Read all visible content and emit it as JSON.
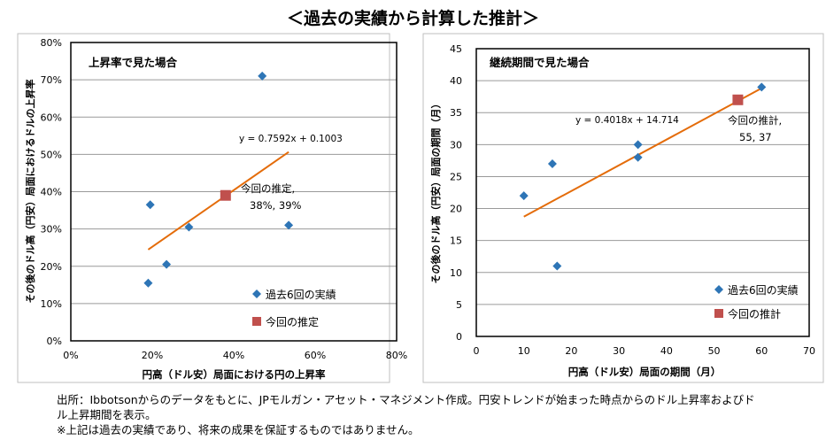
{
  "heading": "＜過去の実績から計算した推計＞",
  "footnotes": [
    "出所：Ibbotsonからのデータをもとに、JPモルガン・アセット・マネジメント作成。円安トレンドが始まった時点からのドル上昇率およびド",
    "ル上昇期間を表示。",
    "※上記は過去の実績であり、将来の成果を保証するものではありません。"
  ],
  "colors": {
    "point": "#2e75b6",
    "estimate": "#c0504d",
    "trend": "#e46c0a",
    "grid": "#9a9a9a",
    "frame": "#000000"
  },
  "chart_data": [
    {
      "type": "scatter",
      "panel_title": "上昇率で見た場合",
      "xlabel": "円高（ドル安）局面における円の上昇率",
      "ylabel": "その後のドル高（円安）局面におけるドルの上昇率",
      "xlim": [
        0,
        0.8
      ],
      "ylim": [
        0,
        0.8
      ],
      "x_ticks": [
        0,
        0.2,
        0.4,
        0.6,
        0.8
      ],
      "y_ticks": [
        0,
        0.1,
        0.2,
        0.3,
        0.4,
        0.5,
        0.6,
        0.7,
        0.8
      ],
      "x_tick_labels": [
        "0%",
        "20%",
        "40%",
        "60%",
        "80%"
      ],
      "y_tick_labels": [
        "0%",
        "10%",
        "20%",
        "30%",
        "40%",
        "50%",
        "60%",
        "70%",
        "80%"
      ],
      "series": [
        {
          "name": "過去6回の実績",
          "marker": "diamond",
          "points": [
            [
              0.47,
              0.71
            ],
            [
              0.195,
              0.365
            ],
            [
              0.29,
              0.305
            ],
            [
              0.535,
              0.31
            ],
            [
              0.235,
              0.205
            ],
            [
              0.19,
              0.155
            ]
          ]
        },
        {
          "name": "今回の推定",
          "marker": "square",
          "points": [
            [
              0.38,
              0.39
            ]
          ]
        }
      ],
      "trendline": {
        "equation": "y = 0.7592x + 0.1003",
        "slope": 0.7592,
        "intercept": 0.1003,
        "x_range": [
          0.19,
          0.535
        ]
      },
      "annotation": {
        "text_line1": "今回の推定,",
        "text_line2": "38%, 39%"
      }
    },
    {
      "type": "scatter",
      "panel_title": "継続期間で見た場合",
      "xlabel": "円高（ドル安）局面の期間（月）",
      "ylabel": "その後のドル高（円安）局面の期間（月）",
      "xlim": [
        0,
        70
      ],
      "ylim": [
        0,
        45
      ],
      "x_ticks": [
        0,
        10,
        20,
        30,
        40,
        50,
        60,
        70
      ],
      "y_ticks": [
        0,
        5,
        10,
        15,
        20,
        25,
        30,
        35,
        40,
        45
      ],
      "x_tick_labels": [
        "0",
        "10",
        "20",
        "30",
        "40",
        "50",
        "60",
        "70"
      ],
      "y_tick_labels": [
        "0",
        "5",
        "10",
        "15",
        "20",
        "25",
        "30",
        "35",
        "40",
        "45"
      ],
      "series": [
        {
          "name": "過去6回の実績",
          "marker": "diamond",
          "points": [
            [
              10,
              22
            ],
            [
              16,
              27
            ],
            [
              17,
              11
            ],
            [
              34,
              30
            ],
            [
              34,
              28
            ],
            [
              60,
              39
            ]
          ]
        },
        {
          "name": "今回の推計",
          "marker": "square",
          "points": [
            [
              55,
              37
            ]
          ]
        }
      ],
      "trendline": {
        "equation": "y = 0.4018x + 14.714",
        "slope": 0.4018,
        "intercept": 14.714,
        "x_range": [
          10,
          60
        ]
      },
      "annotation": {
        "text_line1": "今回の推計,",
        "text_line2": "55, 37"
      }
    }
  ]
}
